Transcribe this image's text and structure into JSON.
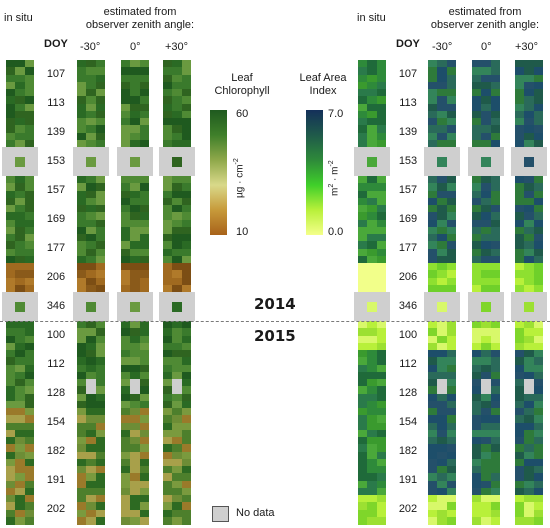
{
  "left_panel": {
    "in_situ_label": "in situ",
    "doy_label": "DOY",
    "estimated_label_line1": "estimated from",
    "estimated_label_line2": "observer zenith angle:",
    "angles": [
      "-30°",
      "0°",
      "+30°"
    ]
  },
  "right_panel": {
    "in_situ_label": "in situ",
    "doy_label": "DOY",
    "estimated_label_line1": "estimated from",
    "estimated_label_line2": "observer zenith angle:",
    "angles": [
      "-30°",
      "0°",
      "+30°"
    ]
  },
  "doy_rows": [
    "107",
    "113",
    "139",
    "153",
    "157",
    "169",
    "177",
    "206",
    "346",
    "100",
    "112",
    "128",
    "154",
    "182",
    "191",
    "202"
  ],
  "years": {
    "first": "2014",
    "second": "2015"
  },
  "chlorophyll_legend": {
    "title_line1": "Leaf",
    "title_line2": "Chlorophyll",
    "max": "60",
    "min": "10",
    "unit": "µg · cm",
    "unit_exp": "-2",
    "colors": [
      "#1f5a1f",
      "#3f7f2a",
      "#8fa84a",
      "#d9d98a",
      "#c79a3a",
      "#a8621a"
    ]
  },
  "lai_legend": {
    "title_line1": "Leaf Area",
    "title_line2": "Index",
    "max": "7.0",
    "min": "0.0",
    "unit": "m",
    "unit_mid": " · m",
    "unit_exp": "-2",
    "colors": [
      "#14305a",
      "#1f5a4a",
      "#2e8a3a",
      "#3fcf2a",
      "#b8f03a",
      "#f4ff8a"
    ]
  },
  "no_data_label": "No data",
  "no_data_color": "#cfcfcf"
}
